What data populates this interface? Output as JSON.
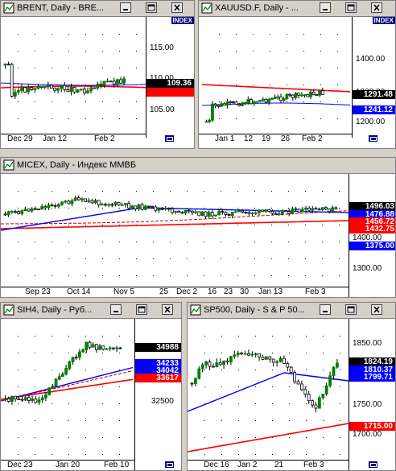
{
  "windows": [
    {
      "title": "BRENT, Daily - BRE...",
      "index_label": "INDEX",
      "y_labels": [
        "115.00",
        "110.00",
        "105.00"
      ],
      "price_tags": [
        {
          "text": "109.36",
          "color": "#000000"
        },
        {
          "text": "",
          "color": "#ff0000"
        }
      ],
      "x_labels": [
        "Dec 29",
        "Jan 12",
        "Feb 2"
      ]
    },
    {
      "title": "XAUUSD.F, Daily - ...",
      "index_label": "INDEX",
      "y_labels": [
        "1400.00",
        "1300.00",
        "1200.00"
      ],
      "price_tags": [
        {
          "text": "1291.48",
          "color": "#000000"
        },
        {
          "text": "1241.12",
          "color": "#0000ff"
        }
      ],
      "x_labels": [
        "Jan 1",
        "12",
        "19",
        "26",
        "Feb 2"
      ]
    },
    {
      "title": "MICEX, Daily - Индекс ММВБ",
      "y_labels": [
        "1400.00",
        "1300.00"
      ],
      "price_tags": [
        {
          "text": "1496.03",
          "color": "#000000"
        },
        {
          "text": "1476.88",
          "color": "#0000ff"
        },
        {
          "text": "1456.72",
          "color": "#ff0000"
        },
        {
          "text": "1432.75",
          "color": "#ff0000"
        },
        {
          "text": "1375.00",
          "color": "#0000ff"
        }
      ],
      "x_labels": [
        "Sep 23",
        "Oct 14",
        "Nov 5",
        "25",
        "Dec 2",
        "16",
        "23",
        "30",
        "Jan 13",
        "Feb 3"
      ]
    },
    {
      "title": "SIH4, Daily - Руб...",
      "y_labels": [
        "32500"
      ],
      "price_tags": [
        {
          "text": "34988",
          "color": "#000000"
        },
        {
          "text": "34233",
          "color": "#0000ff"
        },
        {
          "text": "34042",
          "color": "#0000ff"
        },
        {
          "text": "33617",
          "color": "#ff0000"
        }
      ],
      "x_labels": [
        "Dec 23",
        "Jan 20",
        "Feb 10"
      ]
    },
    {
      "title": "SP500, Daily - S & P 50...",
      "y_labels": [
        "1850.00",
        "1800.00",
        "1750.00",
        "1700.00"
      ],
      "price_tags": [
        {
          "text": "1824.19",
          "color": "#000000"
        },
        {
          "text": "1810.37",
          "color": "#0000ff"
        },
        {
          "text": "1799.71",
          "color": "#0000ff"
        },
        {
          "text": "1715.00",
          "color": "#ff0000"
        }
      ],
      "x_labels": [
        "Dec 16",
        "Jan 2",
        "21",
        "Feb 3"
      ]
    }
  ],
  "colors": {
    "bull": "#008000",
    "bear": "#000000",
    "ma_blue": "#0000ff",
    "ma_red": "#ff0000",
    "ma_darkred": "#c00000",
    "grid": "#000000"
  },
  "icons": {
    "window": "chart-window-icon",
    "minimize": "minimize-icon",
    "maximize": "maximize-icon",
    "close": "close-icon",
    "scroll": "scroll-to-end-icon"
  }
}
